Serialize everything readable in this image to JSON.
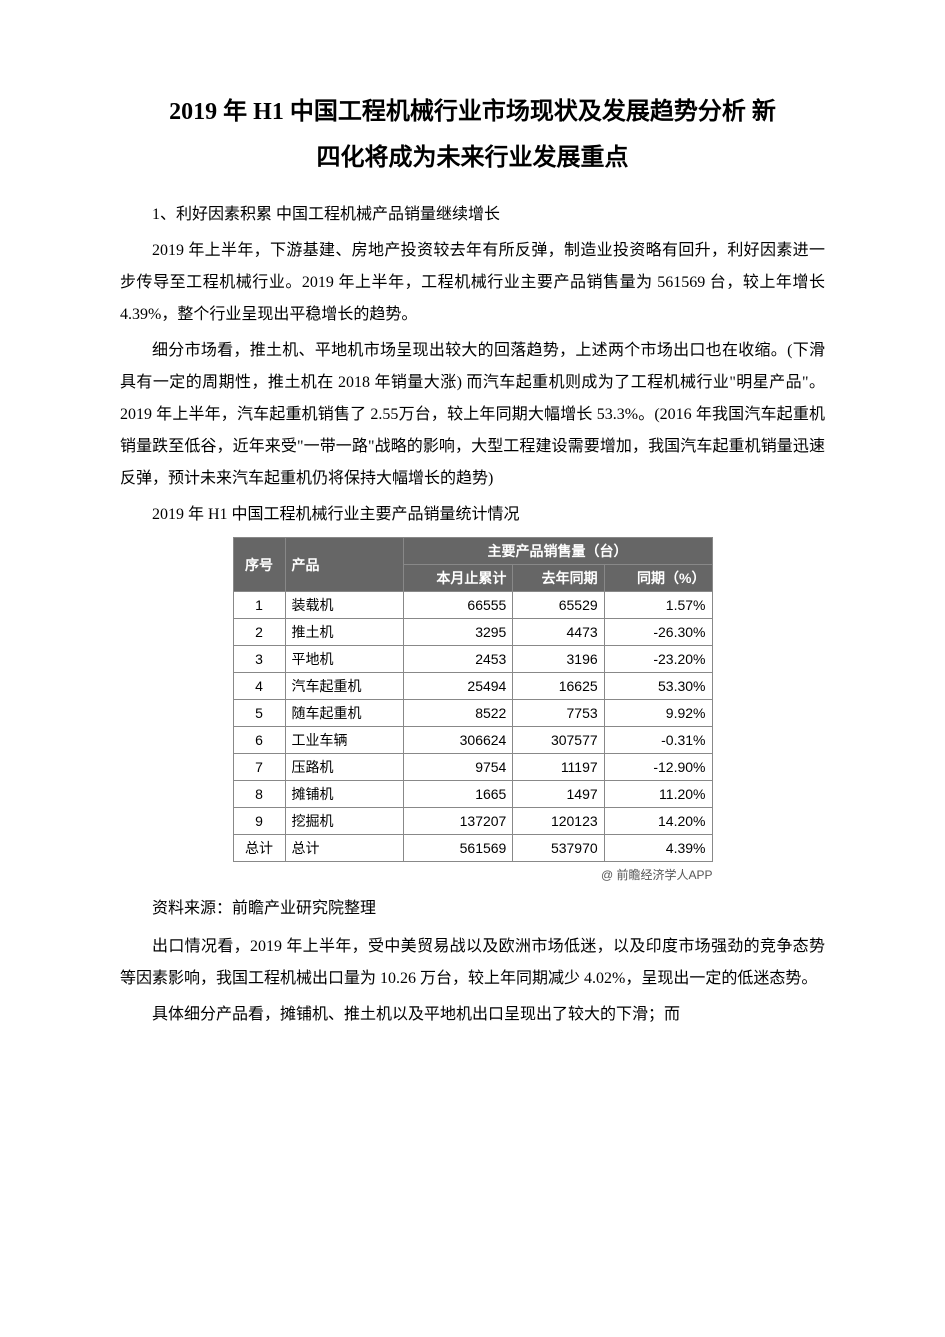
{
  "title_line1": "2019 年 H1 中国工程机械行业市场现状及发展趋势分析 新",
  "title_line2": "四化将成为未来行业发展重点",
  "section1_head": "1、利好因素积累 中国工程机械产品销量继续增长",
  "para1": "2019 年上半年，下游基建、房地产投资较去年有所反弹，制造业投资略有回升，利好因素进一步传导至工程机械行业。2019 年上半年，工程机械行业主要产品销售量为 561569 台，较上年增长 4.39%，整个行业呈现出平稳增长的趋势。",
  "para2": "细分市场看，推土机、平地机市场呈现出较大的回落趋势，上述两个市场出口也在收缩。(下滑具有一定的周期性，推土机在 2018 年销量大涨) 而汽车起重机则成为了工程机械行业\"明星产品\"。2019 年上半年，汽车起重机销售了 2.55万台，较上年同期大幅增长 53.3%。(2016 年我国汽车起重机销量跌至低谷，近年来受\"一带一路\"战略的影响，大型工程建设需要增加，我国汽车起重机销量迅速反弹，预计未来汽车起重机仍将保持大幅增长的趋势)",
  "table_caption": "2019 年 H1 中国工程机械行业主要产品销量统计情况",
  "table": {
    "type": "table",
    "header_bg": "#666666",
    "header_fg": "#ffffff",
    "border_color": "#888888",
    "font_family": "Arial, Microsoft YaHei, sans-serif",
    "font_size": 14,
    "h_seq": "序号",
    "h_prod": "产品",
    "h_group": "主要产品销售量（台）",
    "h_c1": "本月止累计",
    "h_c2": "去年同期",
    "h_c3": "同期（%）",
    "rows": [
      {
        "seq": "1",
        "prod": "装载机",
        "v1": "66555",
        "v2": "65529",
        "v3": "1.57%"
      },
      {
        "seq": "2",
        "prod": "推土机",
        "v1": "3295",
        "v2": "4473",
        "v3": "-26.30%"
      },
      {
        "seq": "3",
        "prod": "平地机",
        "v1": "2453",
        "v2": "3196",
        "v3": "-23.20%"
      },
      {
        "seq": "4",
        "prod": "汽车起重机",
        "v1": "25494",
        "v2": "16625",
        "v3": "53.30%"
      },
      {
        "seq": "5",
        "prod": "随车起重机",
        "v1": "8522",
        "v2": "7753",
        "v3": "9.92%"
      },
      {
        "seq": "6",
        "prod": "工业车辆",
        "v1": "306624",
        "v2": "307577",
        "v3": "-0.31%"
      },
      {
        "seq": "7",
        "prod": "压路机",
        "v1": "9754",
        "v2": "11197",
        "v3": "-12.90%"
      },
      {
        "seq": "8",
        "prod": "摊铺机",
        "v1": "1665",
        "v2": "1497",
        "v3": "11.20%"
      },
      {
        "seq": "9",
        "prod": "挖掘机",
        "v1": "137207",
        "v2": "120123",
        "v3": "14.20%"
      },
      {
        "seq": "总计",
        "prod": "总计",
        "v1": "561569",
        "v2": "537970",
        "v3": "4.39%"
      }
    ]
  },
  "table_footer": "@ 前瞻经济学人APP",
  "source": "资料来源：前瞻产业研究院整理",
  "para3": "出口情况看，2019 年上半年，受中美贸易战以及欧洲市场低迷，以及印度市场强劲的竞争态势等因素影响，我国工程机械出口量为 10.26 万台，较上年同期减少 4.02%，呈现出一定的低迷态势。",
  "para4": "具体细分产品看，摊铺机、推土机以及平地机出口呈现出了较大的下滑；而"
}
